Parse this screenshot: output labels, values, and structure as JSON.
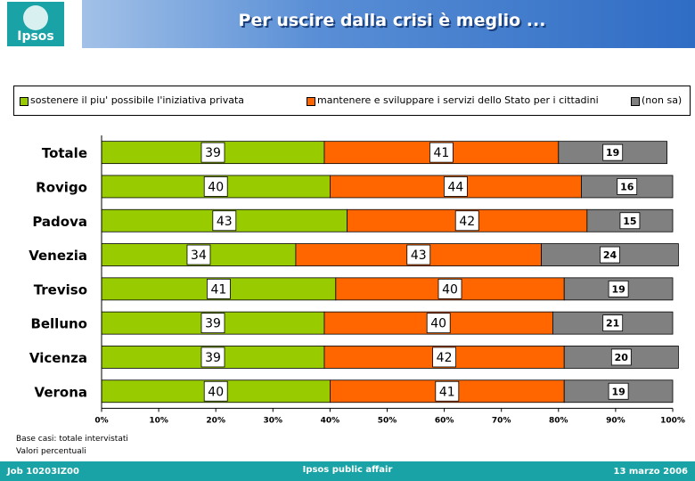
{
  "logo": {
    "text": "Ipsos"
  },
  "header": {
    "title": "Per uscire dalla crisi è meglio ..."
  },
  "chart_data": {
    "type": "bar",
    "orientation": "horizontal",
    "stacked": true,
    "categories": [
      "Totale",
      "Rovigo",
      "Padova",
      "Venezia",
      "Treviso",
      "Belluno",
      "Vicenza",
      "Verona"
    ],
    "series": [
      {
        "name": "sostenere il piu' possibile l'iniziativa privata",
        "color": "#99cc00",
        "values": [
          39,
          40,
          43,
          34,
          41,
          39,
          39,
          40
        ],
        "labels": [
          "39",
          "40",
          "43",
          "34",
          "41",
          "39",
          "39",
          "40"
        ]
      },
      {
        "name": "mantenere e sviluppare i servizi dello Stato per i cittadini",
        "color": "#ff6600",
        "values": [
          41,
          44,
          42,
          43,
          40,
          40,
          42,
          41
        ],
        "labels": [
          "41",
          "44",
          "42",
          "43",
          "40",
          "40",
          "42",
          "41"
        ]
      },
      {
        "name": "(non sa)",
        "color": "#808080",
        "values": [
          19,
          16,
          15,
          24,
          19,
          21,
          20,
          19
        ],
        "labels": [
          "19",
          "16",
          "15",
          "24",
          "19",
          "21",
          "20",
          "19"
        ]
      }
    ],
    "xlim": [
      0,
      100
    ],
    "xticks": [
      "0%",
      "10%",
      "20%",
      "30%",
      "40%",
      "50%",
      "60%",
      "70%",
      "80%",
      "90%",
      "100%"
    ],
    "legend": "top"
  },
  "notes": {
    "line1": "Base casi: totale intervistati",
    "line2": "Valori percentuali"
  },
  "footer": {
    "left": "Job 10203IZ00",
    "center": "Ipsos public affair",
    "right": "13 marzo 2006"
  }
}
